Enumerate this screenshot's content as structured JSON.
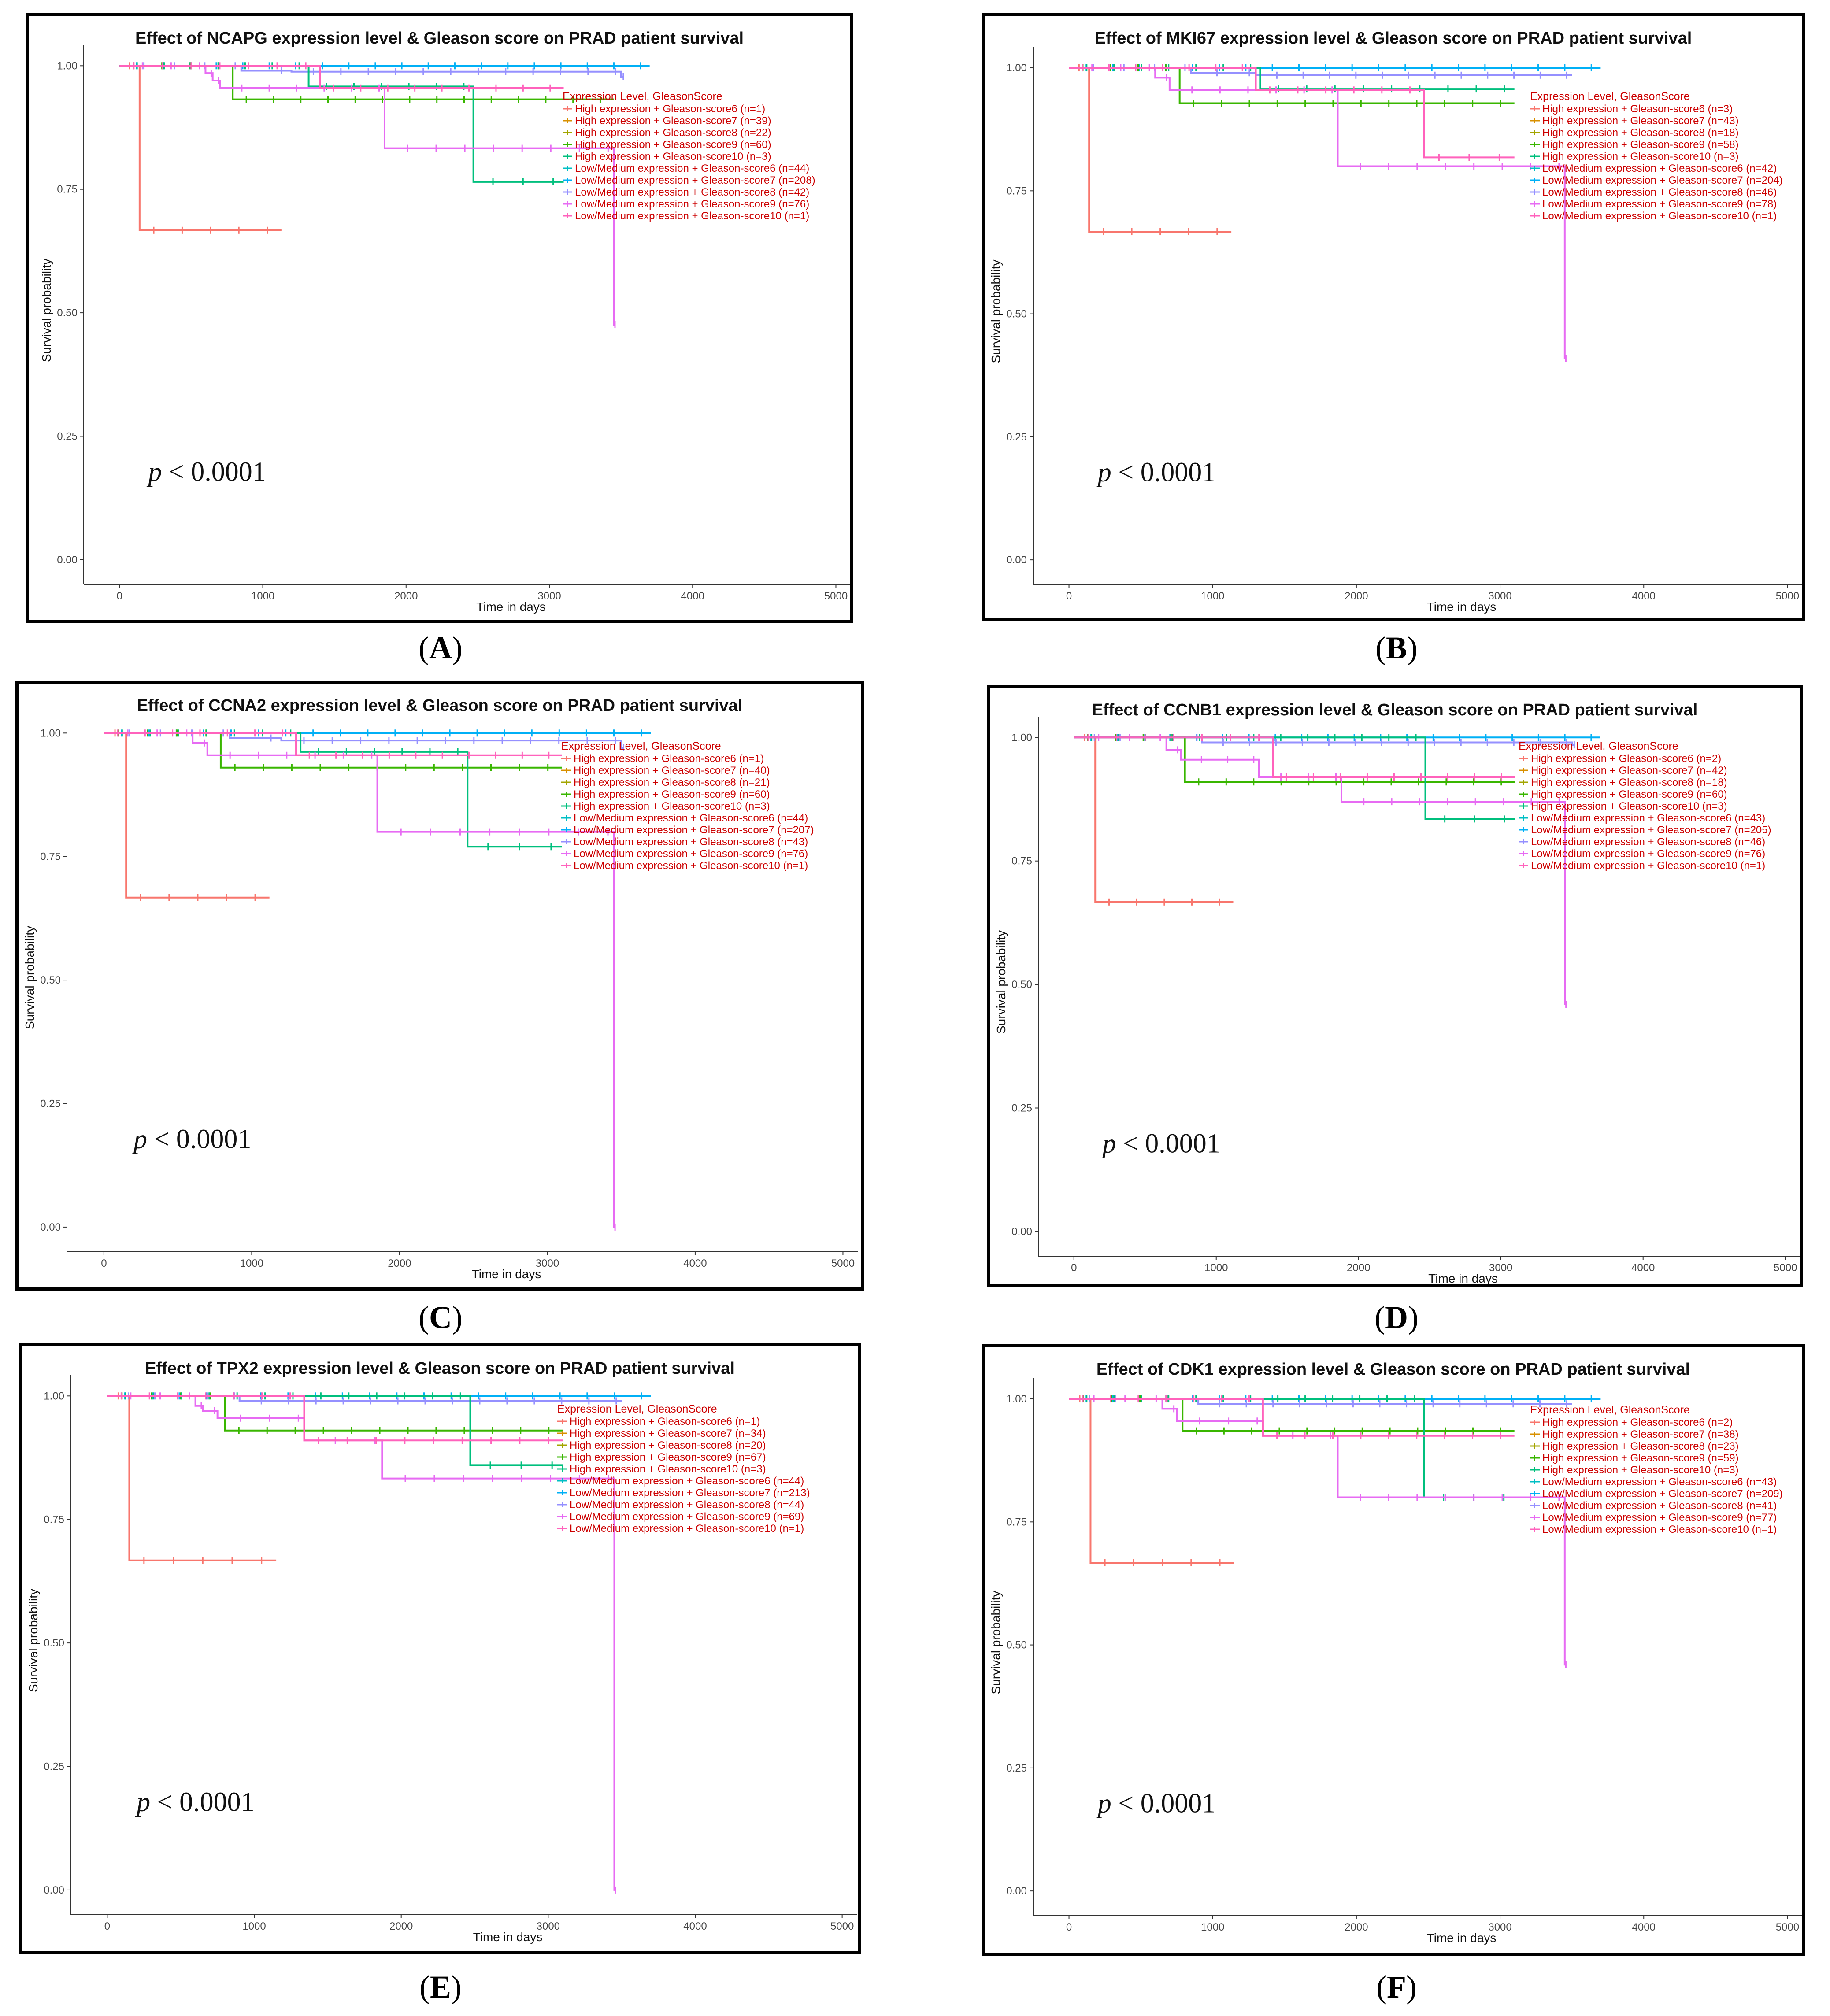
{
  "figure": {
    "x_label": "Time in days",
    "y_label": "Survival probability",
    "x_ticks": [
      "0",
      "1000",
      "2000",
      "3000",
      "4000",
      "5000"
    ],
    "y_ticks": [
      "0.00",
      "0.25",
      "0.50",
      "0.75",
      "1.00"
    ],
    "legend_title": "Expression Level, GleasonScore",
    "p_text": "p",
    "p_value": "< 0.0001",
    "colors": [
      "#F8766D",
      "#D89000",
      "#A3A500",
      "#39B600",
      "#00BF7D",
      "#00BFC4",
      "#00B0F6",
      "#9590FF",
      "#E76BF3",
      "#FF62BC"
    ],
    "legend_text_color": "#CC0000"
  },
  "panels": [
    {
      "label": "A",
      "title": "Effect of NCAPG expression level & Gleason score on PRAD patient survival",
      "legend": [
        "High expression + Gleason-score6 (n=1)",
        "High expression + Gleason-score7 (n=39)",
        "High expression + Gleason-score8 (n=22)",
        "High expression + Gleason-score9 (n=60)",
        "High expression + Gleason-score10 (n=3)",
        "Low/Medium expression + Gleason-score6 (n=44)",
        "Low/Medium expression + Gleason-score7 (n=208)",
        "Low/Medium expression + Gleason-score8 (n=42)",
        "Low/Medium expression + Gleason-score9 (n=76)",
        "Low/Medium expression + Gleason-score10 (n=1)"
      ]
    },
    {
      "label": "B",
      "title": "Effect of MKI67 expression level & Gleason score on PRAD patient survival",
      "legend": [
        "High expression + Gleason-score6 (n=3)",
        "High expression + Gleason-score7 (n=43)",
        "High expression + Gleason-score8 (n=18)",
        "High expression + Gleason-score9 (n=58)",
        "High expression + Gleason-score10 (n=3)",
        "Low/Medium expression + Gleason-score6 (n=42)",
        "Low/Medium expression + Gleason-score7 (n=204)",
        "Low/Medium expression + Gleason-score8 (n=46)",
        "Low/Medium expression + Gleason-score9 (n=78)",
        "Low/Medium expression + Gleason-score10 (n=1)"
      ]
    },
    {
      "label": "C",
      "title": "Effect of CCNA2 expression level & Gleason score on PRAD patient survival",
      "legend": [
        "High expression + Gleason-score6 (n=1)",
        "High expression + Gleason-score7 (n=40)",
        "High expression + Gleason-score8 (n=21)",
        "High expression + Gleason-score9 (n=60)",
        "High expression + Gleason-score10 (n=3)",
        "Low/Medium expression + Gleason-score6 (n=44)",
        "Low/Medium expression + Gleason-score7 (n=207)",
        "Low/Medium expression + Gleason-score8 (n=43)",
        "Low/Medium expression + Gleason-score9 (n=76)",
        "Low/Medium expression + Gleason-score10 (n=1)"
      ]
    },
    {
      "label": "D",
      "title": "Effect of CCNB1 expression level & Gleason score on PRAD patient survival",
      "legend": [
        "High expression + Gleason-score6 (n=2)",
        "High expression + Gleason-score7 (n=42)",
        "High expression + Gleason-score8 (n=18)",
        "High expression + Gleason-score9 (n=60)",
        "High expression + Gleason-score10 (n=3)",
        "Low/Medium expression + Gleason-score6 (n=43)",
        "Low/Medium expression + Gleason-score7 (n=205)",
        "Low/Medium expression + Gleason-score8 (n=46)",
        "Low/Medium expression + Gleason-score9 (n=76)",
        "Low/Medium expression + Gleason-score10 (n=1)"
      ]
    },
    {
      "label": "E",
      "title": "Effect of TPX2 expression level & Gleason score on PRAD patient survival",
      "legend": [
        "High expression + Gleason-score6 (n=1)",
        "High expression + Gleason-score7 (n=34)",
        "High expression + Gleason-score8 (n=20)",
        "High expression + Gleason-score9 (n=67)",
        "High expression + Gleason-score10 (n=3)",
        "Low/Medium expression + Gleason-score6 (n=44)",
        "Low/Medium expression + Gleason-score7 (n=213)",
        "Low/Medium expression + Gleason-score8 (n=44)",
        "Low/Medium expression + Gleason-score9 (n=69)",
        "Low/Medium expression + Gleason-score10 (n=1)"
      ]
    },
    {
      "label": "F",
      "title": "Effect of CDK1 expression level & Gleason score on PRAD patient survival",
      "legend": [
        "High expression + Gleason-score6 (n=2)",
        "High expression + Gleason-score7 (n=38)",
        "High expression + Gleason-score8 (n=23)",
        "High expression + Gleason-score9 (n=59)",
        "High expression + Gleason-score10 (n=3)",
        "Low/Medium expression + Gleason-score6 (n=43)",
        "Low/Medium expression + Gleason-score7 (n=209)",
        "Low/Medium expression + Gleason-score8 (n=41)",
        "Low/Medium expression + Gleason-score9 (n=77)",
        "Low/Medium expression + Gleason-score10 (n=1)"
      ]
    }
  ],
  "chart_data": [
    {
      "type": "line",
      "title": "Effect of NCAPG expression level & Gleason score on PRAD patient survival",
      "xlabel": "Time in days",
      "ylabel": "Survival probability",
      "xlim": [
        -250,
        5100
      ],
      "ylim": [
        -0.05,
        1.06
      ],
      "series": [
        {
          "name": "High expression + Gleason-score6 (n=1)",
          "steps": [
            [
              0,
              1.0
            ],
            [
              140,
              0.667
            ]
          ],
          "end": 1130
        },
        {
          "name": "Low/Medium expression + Gleason-score7 (n=208)",
          "steps": [
            [
              0,
              1.0
            ]
          ],
          "end": 3700
        },
        {
          "name": "Low/Medium expression + Gleason-score8 (n=42)",
          "steps": [
            [
              0,
              1.0
            ],
            [
              850,
              0.99
            ],
            [
              1200,
              0.988
            ],
            [
              3500,
              0.978
            ]
          ],
          "end": 3520
        },
        {
          "name": "High expression + Gleason-score9 (n=60)",
          "steps": [
            [
              0,
              1.0
            ],
            [
              790,
              0.932
            ]
          ],
          "end": 3450
        },
        {
          "name": "High expression + Gleason-score10 (n=3)",
          "steps": [
            [
              0,
              1.0
            ],
            [
              1320,
              0.958
            ],
            [
              2470,
              0.765
            ]
          ],
          "end": 3100
        },
        {
          "name": "Low/Medium expression + Gleason-score9 (n=76)",
          "steps": [
            [
              0,
              1.0
            ],
            [
              600,
              0.985
            ],
            [
              650,
              0.97
            ],
            [
              700,
              0.955
            ],
            [
              1850,
              0.833
            ],
            [
              3450,
              0.476
            ]
          ],
          "end": 3460
        },
        {
          "name": "Low/Medium expression + Gleason-score10 (n=1)",
          "steps": [
            [
              0,
              1.0
            ],
            [
              1400,
              0.955
            ]
          ],
          "end": 3100
        }
      ]
    },
    {
      "type": "line",
      "title": "Effect of MKI67 expression level & Gleason score on PRAD patient survival",
      "xlabel": "Time in days",
      "ylabel": "Survival probability",
      "xlim": [
        -250,
        5100
      ],
      "ylim": [
        -0.05,
        1.06
      ],
      "series": [
        {
          "name": "High expression + Gleason-score6 (n=3)",
          "steps": [
            [
              0,
              1.0
            ],
            [
              140,
              0.667
            ]
          ],
          "end": 1130
        },
        {
          "name": "Low/Medium expression + Gleason-score7 (n=204)",
          "steps": [
            [
              0,
              1.0
            ]
          ],
          "end": 3700
        },
        {
          "name": "Low/Medium expression + Gleason-score8 (n=46)",
          "steps": [
            [
              0,
              1.0
            ],
            [
              850,
              0.99
            ],
            [
              1300,
              0.985
            ]
          ],
          "end": 3500
        },
        {
          "name": "High expression + Gleason-score9 (n=58)",
          "steps": [
            [
              0,
              1.0
            ],
            [
              770,
              0.928
            ]
          ],
          "end": 3100
        },
        {
          "name": "High expression + Gleason-score10 (n=3)",
          "steps": [
            [
              0,
              1.0
            ],
            [
              1330,
              0.957
            ]
          ],
          "end": 3100
        },
        {
          "name": "Low/Medium expression + Gleason-score9 (n=78)",
          "steps": [
            [
              0,
              1.0
            ],
            [
              600,
              0.98
            ],
            [
              700,
              0.955
            ],
            [
              1870,
              0.8
            ],
            [
              3450,
              0.41
            ]
          ],
          "end": 3460
        },
        {
          "name": "Low/Medium expression + Gleason-score10 (n=1)",
          "steps": [
            [
              0,
              1.0
            ],
            [
              1300,
              0.955
            ],
            [
              2470,
              0.818
            ]
          ],
          "end": 3100
        }
      ]
    },
    {
      "type": "line",
      "title": "Effect of CCNA2 expression level & Gleason score on PRAD patient survival",
      "xlabel": "Time in days",
      "ylabel": "Survival probability",
      "xlim": [
        -250,
        5100
      ],
      "ylim": [
        -0.05,
        1.06
      ],
      "series": [
        {
          "name": "High expression + Gleason-score6 (n=1)",
          "steps": [
            [
              0,
              1.0
            ],
            [
              150,
              0.667
            ]
          ],
          "end": 1120
        },
        {
          "name": "Low/Medium expression + Gleason-score7 (n=207)",
          "steps": [
            [
              0,
              1.0
            ]
          ],
          "end": 3700
        },
        {
          "name": "Low/Medium expression + Gleason-score8 (n=43)",
          "steps": [
            [
              0,
              1.0
            ],
            [
              850,
              0.99
            ],
            [
              1200,
              0.985
            ],
            [
              3500,
              0.97
            ]
          ],
          "end": 3520
        },
        {
          "name": "High expression + Gleason-score9 (n=60)",
          "steps": [
            [
              0,
              1.0
            ],
            [
              790,
              0.93
            ]
          ],
          "end": 3100
        },
        {
          "name": "High expression + Gleason-score10 (n=3)",
          "steps": [
            [
              0,
              1.0
            ],
            [
              1330,
              0.962
            ],
            [
              2460,
              0.77
            ]
          ],
          "end": 3100
        },
        {
          "name": "Low/Medium expression + Gleason-score9 (n=76)",
          "steps": [
            [
              0,
              1.0
            ],
            [
              600,
              0.98
            ],
            [
              700,
              0.955
            ],
            [
              1850,
              0.8
            ],
            [
              3450,
              0.0
            ]
          ],
          "end": 3460
        },
        {
          "name": "Low/Medium expression + Gleason-score10 (n=1)",
          "steps": [
            [
              0,
              1.0
            ],
            [
              1300,
              0.955
            ]
          ],
          "end": 3100
        }
      ]
    },
    {
      "type": "line",
      "title": "Effect of CCNB1 expression level & Gleason score on PRAD patient survival",
      "xlabel": "Time in days",
      "ylabel": "Survival probability",
      "xlim": [
        -250,
        5100
      ],
      "ylim": [
        -0.05,
        1.06
      ],
      "series": [
        {
          "name": "High expression + Gleason-score6 (n=2)",
          "steps": [
            [
              0,
              1.0
            ],
            [
              150,
              0.667
            ]
          ],
          "end": 1120
        },
        {
          "name": "Low/Medium expression + Gleason-score7 (n=205)",
          "steps": [
            [
              0,
              1.0
            ]
          ],
          "end": 3700
        },
        {
          "name": "Low/Medium expression + Gleason-score8 (n=46)",
          "steps": [
            [
              0,
              1.0
            ],
            [
              900,
              0.99
            ],
            [
              3500,
              0.985
            ]
          ],
          "end": 3520
        },
        {
          "name": "High expression + Gleason-score9 (n=60)",
          "steps": [
            [
              0,
              1.0
            ],
            [
              780,
              0.91
            ]
          ],
          "end": 3100
        },
        {
          "name": "High expression + Gleason-score10 (n=3)",
          "steps": [
            [
              0,
              1.0
            ],
            [
              2470,
              0.835
            ]
          ],
          "end": 3100
        },
        {
          "name": "Low/Medium expression + Gleason-score9 (n=76)",
          "steps": [
            [
              0,
              1.0
            ],
            [
              650,
              0.975
            ],
            [
              750,
              0.955
            ],
            [
              1300,
              0.92
            ],
            [
              1880,
              0.87
            ],
            [
              3450,
              0.46
            ]
          ],
          "end": 3460
        },
        {
          "name": "Low/Medium expression + Gleason-score10 (n=1)",
          "steps": [
            [
              0,
              1.0
            ],
            [
              1400,
              0.92
            ]
          ],
          "end": 3100
        }
      ]
    },
    {
      "type": "line",
      "title": "Effect of TPX2 expression level & Gleason score on PRAD patient survival",
      "xlabel": "Time in days",
      "ylabel": "Survival probability",
      "xlim": [
        -250,
        5100
      ],
      "ylim": [
        -0.05,
        1.06
      ],
      "series": [
        {
          "name": "High expression + Gleason-score6 (n=1)",
          "steps": [
            [
              0,
              1.0
            ],
            [
              150,
              0.667
            ]
          ],
          "end": 1150
        },
        {
          "name": "Low/Medium expression + Gleason-score7 (n=213)",
          "steps": [
            [
              0,
              1.0
            ]
          ],
          "end": 3700
        },
        {
          "name": "Low/Medium expression + Gleason-score8 (n=44)",
          "steps": [
            [
              0,
              1.0
            ],
            [
              900,
              0.99
            ]
          ],
          "end": 3500
        },
        {
          "name": "High expression + Gleason-score9 (n=67)",
          "steps": [
            [
              0,
              1.0
            ],
            [
              800,
              0.93
            ]
          ],
          "end": 3100
        },
        {
          "name": "High expression + Gleason-score10 (n=3)",
          "steps": [
            [
              0,
              1.0
            ],
            [
              2470,
              0.86
            ]
          ],
          "end": 3100
        },
        {
          "name": "Low/Medium expression + Gleason-score9 (n=69)",
          "steps": [
            [
              0,
              1.0
            ],
            [
              600,
              0.98
            ],
            [
              650,
              0.97
            ],
            [
              750,
              0.955
            ],
            [
              1340,
              0.91
            ],
            [
              1870,
              0.833
            ],
            [
              3450,
              0.0
            ]
          ],
          "end": 3460
        },
        {
          "name": "Low/Medium expression + Gleason-score10 (n=1)",
          "steps": [
            [
              0,
              1.0
            ],
            [
              1340,
              0.91
            ]
          ],
          "end": 3100
        }
      ]
    },
    {
      "type": "line",
      "title": "Effect of CDK1 expression level & Gleason score on PRAD patient survival",
      "xlabel": "Time in days",
      "ylabel": "Survival probability",
      "xlim": [
        -250,
        5100
      ],
      "ylim": [
        -0.05,
        1.06
      ],
      "series": [
        {
          "name": "High expression + Gleason-score6 (n=2)",
          "steps": [
            [
              0,
              1.0
            ],
            [
              150,
              0.667
            ]
          ],
          "end": 1150
        },
        {
          "name": "Low/Medium expression + Gleason-score7 (n=209)",
          "steps": [
            [
              0,
              1.0
            ]
          ],
          "end": 3700
        },
        {
          "name": "Low/Medium expression + Gleason-score8 (n=41)",
          "steps": [
            [
              0,
              1.0
            ],
            [
              900,
              0.99
            ]
          ],
          "end": 3500
        },
        {
          "name": "High expression + Gleason-score9 (n=59)",
          "steps": [
            [
              0,
              1.0
            ],
            [
              790,
              0.935
            ]
          ],
          "end": 3100
        },
        {
          "name": "High expression + Gleason-score10 (n=3)",
          "steps": [
            [
              0,
              1.0
            ],
            [
              2470,
              0.8
            ]
          ],
          "end": 3100
        },
        {
          "name": "Low/Medium expression + Gleason-score9 (n=77)",
          "steps": [
            [
              0,
              1.0
            ],
            [
              650,
              0.98
            ],
            [
              750,
              0.955
            ],
            [
              1350,
              0.925
            ],
            [
              1870,
              0.8
            ],
            [
              3450,
              0.46
            ]
          ],
          "end": 3460
        },
        {
          "name": "Low/Medium expression + Gleason-score10 (n=1)",
          "steps": [
            [
              0,
              1.0
            ],
            [
              1350,
              0.925
            ]
          ],
          "end": 3100
        }
      ]
    }
  ]
}
